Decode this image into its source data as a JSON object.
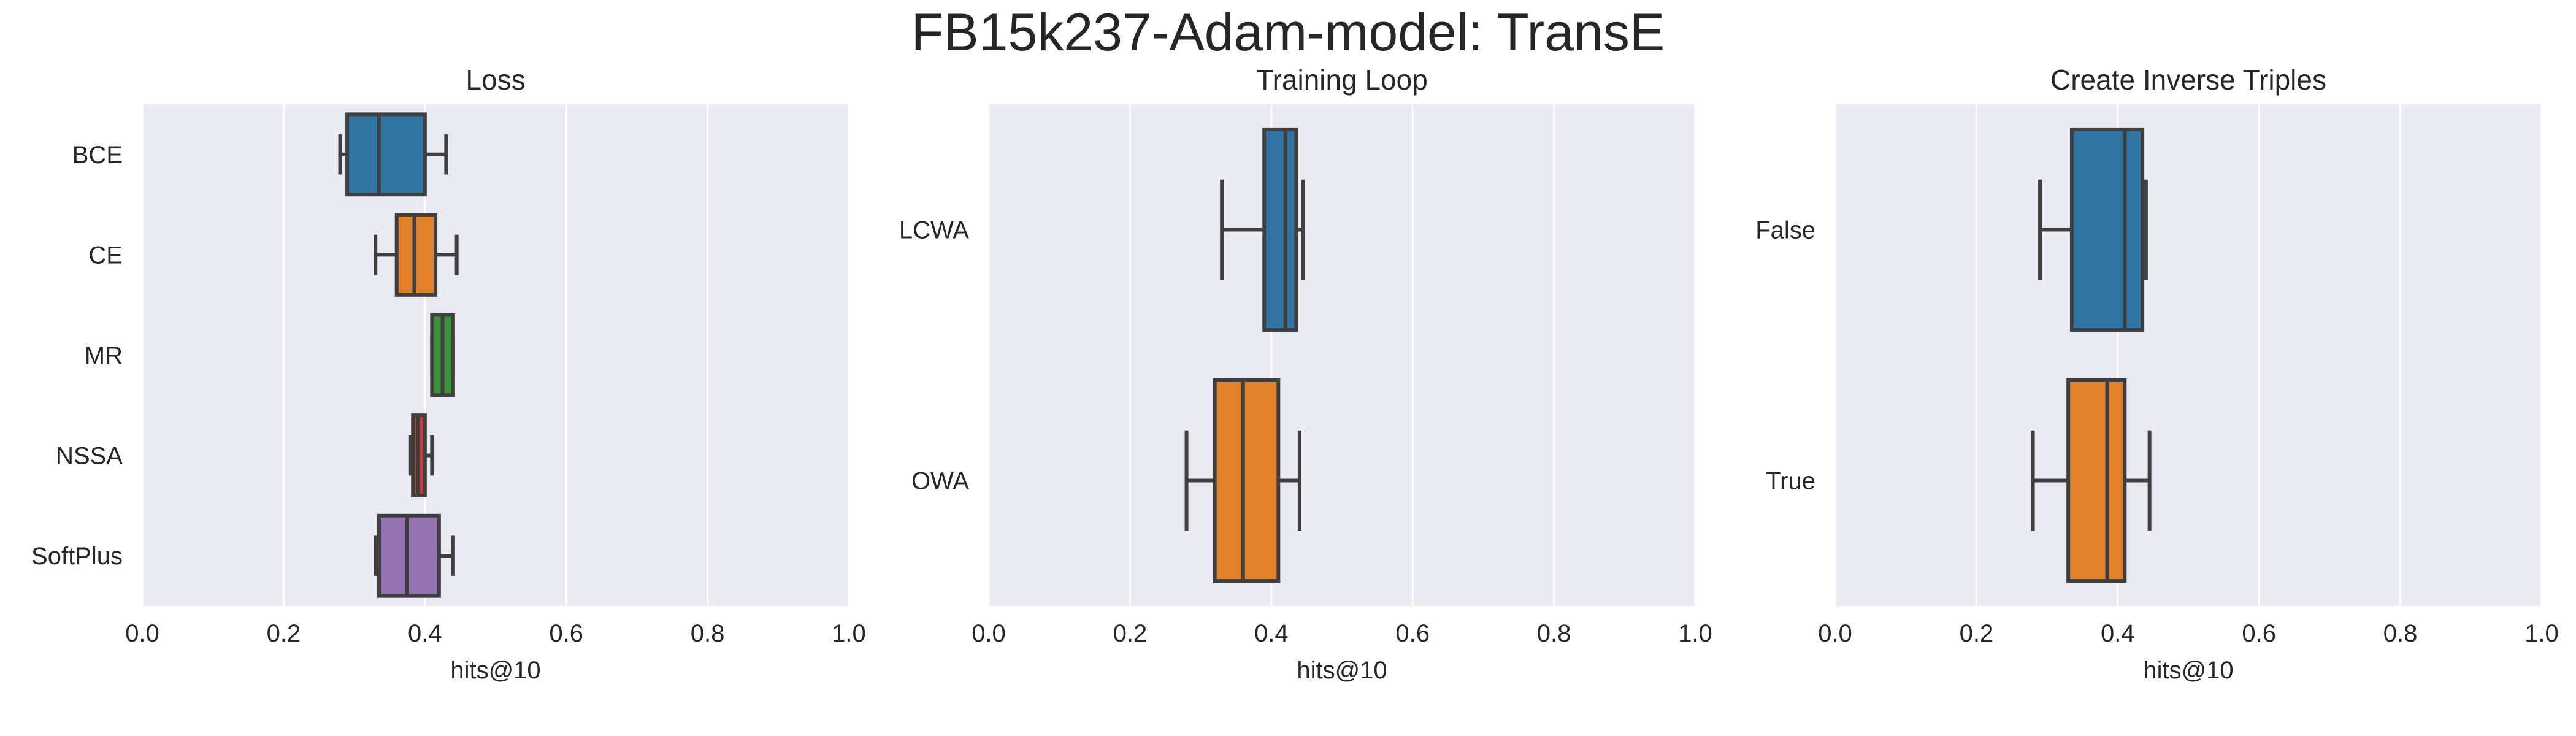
{
  "figure": {
    "title": "FB15k237-Adam-model: TransE"
  },
  "style": {
    "panel_bg": "#EAEAF2",
    "grid": "#FFFFFF",
    "line": "#3F3F3F",
    "palette": [
      "#3274A1",
      "#E1812C",
      "#3A923A",
      "#C03D3E",
      "#9372B2"
    ]
  },
  "chart_data": [
    {
      "type": "boxplot",
      "orientation": "horizontal",
      "title": "Loss",
      "xlabel": "hits@10",
      "xlim": [
        0,
        1
      ],
      "xticks": [
        "0.0",
        "0.2",
        "0.4",
        "0.6",
        "0.8",
        "1.0"
      ],
      "grid": true,
      "categories": [
        "BCE",
        "CE",
        "MR",
        "NSSA",
        "SoftPlus"
      ],
      "boxes": [
        {
          "whislo": 0.28,
          "q1": 0.29,
          "med": 0.335,
          "q3": 0.4,
          "whishi": 0.43
        },
        {
          "whislo": 0.33,
          "q1": 0.36,
          "med": 0.385,
          "q3": 0.415,
          "whishi": 0.445
        },
        {
          "whislo": 0.41,
          "q1": 0.41,
          "med": 0.425,
          "q3": 0.44,
          "whishi": 0.44
        },
        {
          "whislo": 0.38,
          "q1": 0.383,
          "med": 0.39,
          "q3": 0.4,
          "whishi": 0.41
        },
        {
          "whislo": 0.33,
          "q1": 0.335,
          "med": 0.375,
          "q3": 0.42,
          "whishi": 0.44
        }
      ]
    },
    {
      "type": "boxplot",
      "orientation": "horizontal",
      "title": "Training Loop",
      "xlabel": "hits@10",
      "xlim": [
        0,
        1
      ],
      "xticks": [
        "0.0",
        "0.2",
        "0.4",
        "0.6",
        "0.8",
        "1.0"
      ],
      "grid": true,
      "categories": [
        "LCWA",
        "OWA"
      ],
      "boxes": [
        {
          "whislo": 0.33,
          "q1": 0.39,
          "med": 0.42,
          "q3": 0.435,
          "whishi": 0.445
        },
        {
          "whislo": 0.28,
          "q1": 0.32,
          "med": 0.36,
          "q3": 0.41,
          "whishi": 0.44
        }
      ]
    },
    {
      "type": "boxplot",
      "orientation": "horizontal",
      "title": "Create Inverse Triples",
      "xlabel": "hits@10",
      "xlim": [
        0,
        1
      ],
      "xticks": [
        "0.0",
        "0.2",
        "0.4",
        "0.6",
        "0.8",
        "1.0"
      ],
      "grid": true,
      "categories": [
        "False",
        "True"
      ],
      "boxes": [
        {
          "whislo": 0.29,
          "q1": 0.335,
          "med": 0.41,
          "q3": 0.435,
          "whishi": 0.44
        },
        {
          "whislo": 0.28,
          "q1": 0.33,
          "med": 0.385,
          "q3": 0.41,
          "whishi": 0.445
        }
      ]
    }
  ]
}
